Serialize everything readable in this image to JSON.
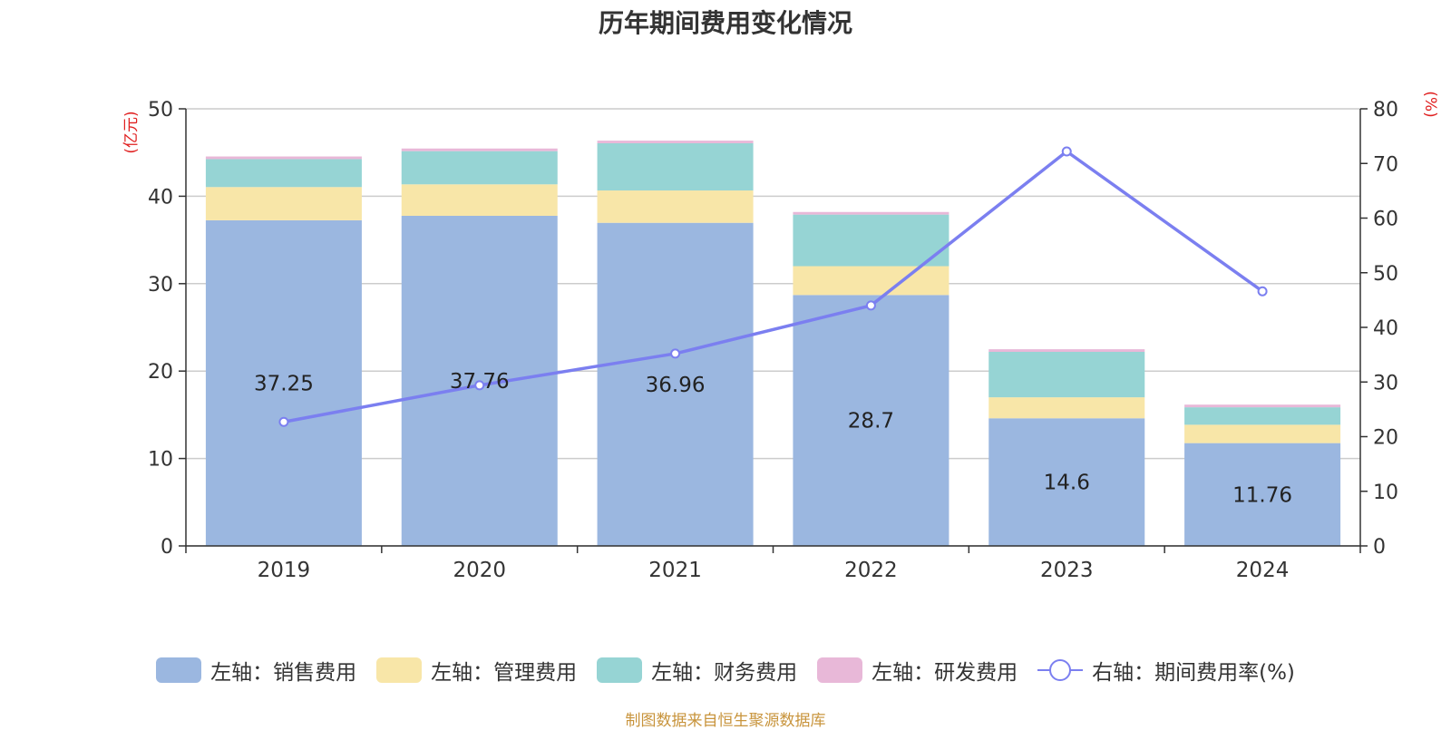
{
  "chart_data": {
    "type": "bar",
    "title": "历年期间费用变化情况",
    "categories": [
      "2019",
      "2020",
      "2021",
      "2022",
      "2023",
      "2024"
    ],
    "y_left": {
      "label": "(亿元)",
      "min": 0,
      "max": 50,
      "ticks": [
        0,
        10,
        20,
        30,
        40,
        50
      ]
    },
    "y_right": {
      "label": "(%)",
      "min": 0,
      "max": 80,
      "ticks": [
        0,
        10,
        20,
        30,
        40,
        50,
        60,
        70,
        80
      ]
    },
    "grid": true,
    "stacked": true,
    "series": [
      {
        "name": "左轴：销售费用",
        "axis": "left",
        "type": "bar",
        "color": "#9bb7e0",
        "values": [
          37.25,
          37.76,
          36.96,
          28.7,
          14.6,
          11.76
        ],
        "labels": [
          "37.25",
          "37.76",
          "36.96",
          "28.7",
          "14.6",
          "11.76"
        ]
      },
      {
        "name": "左轴：管理费用",
        "axis": "left",
        "type": "bar",
        "color": "#f8e6a8",
        "values": [
          3.8,
          3.6,
          3.7,
          3.3,
          2.4,
          2.1
        ]
      },
      {
        "name": "左轴：财务费用",
        "axis": "left",
        "type": "bar",
        "color": "#96d4d4",
        "values": [
          3.2,
          3.8,
          5.4,
          5.9,
          5.2,
          2.0
        ]
      },
      {
        "name": "左轴：研发费用",
        "axis": "left",
        "type": "bar",
        "color": "#e8b8d8",
        "values": [
          0.3,
          0.3,
          0.3,
          0.3,
          0.3,
          0.3
        ]
      },
      {
        "name": "右轴：期间费用率(%)",
        "axis": "right",
        "type": "line",
        "color": "#7b7ff0",
        "values": [
          22.7,
          29.4,
          35.2,
          44.0,
          72.2,
          46.6
        ]
      }
    ],
    "legend_position": "bottom",
    "source": "制图数据来自恒生聚源数据库"
  }
}
